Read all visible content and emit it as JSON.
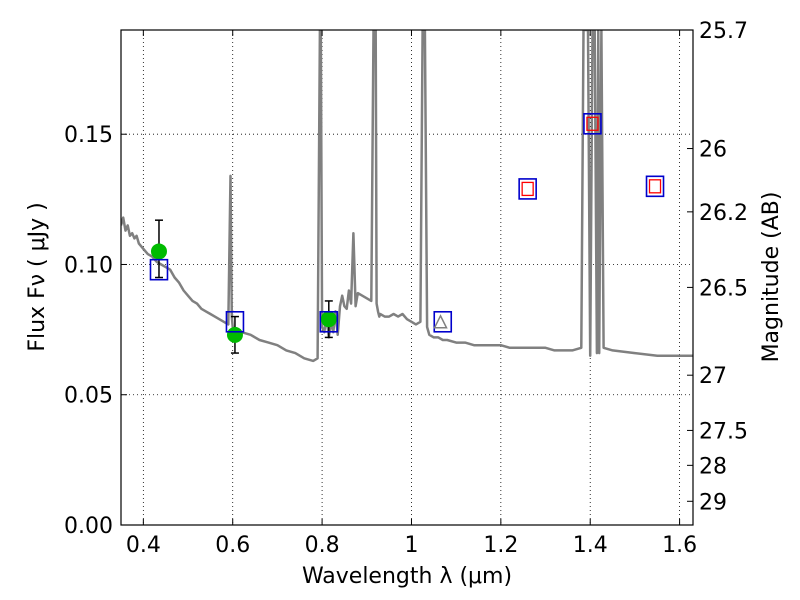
{
  "chart_data": {
    "type": "scatter",
    "xlabel": "Wavelength  λ (μm)",
    "ylabel": "Flux  Fν  ( μJy )",
    "ylabel_right": "Magnitude (AB)",
    "xlim": [
      0.35,
      1.63
    ],
    "ylim": [
      0.0,
      0.19
    ],
    "grid": true,
    "x_ticks": [
      0.4,
      0.6,
      0.8,
      1.0,
      1.2,
      1.4,
      1.6
    ],
    "x_tick_labels": [
      "0.4",
      "0.6",
      "0.8",
      "1",
      "1.2",
      "1.4",
      "1.6"
    ],
    "y_ticks": [
      0.0,
      0.05,
      0.1,
      0.15
    ],
    "y_tick_labels": [
      "0.00",
      "0.05",
      "0.10",
      "0.15"
    ],
    "right_ticks": [
      {
        "label": "25.7",
        "flux": 0.19
      },
      {
        "label": "26",
        "flux": 0.1445
      },
      {
        "label": "26.2",
        "flux": 0.1202
      },
      {
        "label": "26.5",
        "flux": 0.0912
      },
      {
        "label": "27",
        "flux": 0.0575
      },
      {
        "label": "27.5",
        "flux": 0.0363
      },
      {
        "label": "28",
        "flux": 0.0229
      },
      {
        "label": "29",
        "flux": 0.0091
      }
    ],
    "series": [
      {
        "kind": "line",
        "color": "#808080",
        "x": [
          0.35,
          0.355,
          0.36,
          0.365,
          0.37,
          0.375,
          0.38,
          0.385,
          0.39,
          0.4,
          0.41,
          0.42,
          0.43,
          0.44,
          0.45,
          0.46,
          0.47,
          0.48,
          0.49,
          0.5,
          0.51,
          0.52,
          0.53,
          0.54,
          0.55,
          0.56,
          0.57,
          0.58,
          0.59,
          0.595,
          0.598,
          0.6,
          0.61,
          0.62,
          0.64,
          0.66,
          0.68,
          0.7,
          0.72,
          0.74,
          0.76,
          0.78,
          0.79,
          0.795,
          0.797,
          0.8,
          0.805,
          0.81,
          0.815,
          0.82,
          0.825,
          0.83,
          0.835,
          0.84,
          0.845,
          0.85,
          0.855,
          0.86,
          0.865,
          0.87,
          0.875,
          0.88,
          0.89,
          0.9,
          0.91,
          0.915,
          0.92,
          0.922,
          0.925,
          0.928,
          0.93,
          0.94,
          0.95,
          0.96,
          0.97,
          0.98,
          0.99,
          1.0,
          1.01,
          1.02,
          1.025,
          1.03,
          1.035,
          1.04,
          1.05,
          1.06,
          1.07,
          1.08,
          1.1,
          1.12,
          1.14,
          1.16,
          1.18,
          1.2,
          1.22,
          1.24,
          1.26,
          1.28,
          1.3,
          1.32,
          1.34,
          1.36,
          1.38,
          1.385,
          1.39,
          1.395,
          1.4,
          1.405,
          1.41,
          1.415,
          1.418,
          1.42,
          1.425,
          1.43,
          1.45,
          1.5,
          1.55,
          1.6,
          1.63
        ],
        "y": [
          0.115,
          0.118,
          0.113,
          0.115,
          0.111,
          0.112,
          0.11,
          0.111,
          0.108,
          0.106,
          0.104,
          0.103,
          0.101,
          0.1,
          0.099,
          0.098,
          0.095,
          0.093,
          0.09,
          0.088,
          0.086,
          0.085,
          0.083,
          0.082,
          0.081,
          0.08,
          0.079,
          0.078,
          0.077,
          0.134,
          0.08,
          0.076,
          0.075,
          0.074,
          0.073,
          0.071,
          0.07,
          0.069,
          0.067,
          0.066,
          0.064,
          0.063,
          0.064,
          0.19,
          0.19,
          0.076,
          0.074,
          0.08,
          0.072,
          0.078,
          0.074,
          0.082,
          0.073,
          0.084,
          0.088,
          0.084,
          0.083,
          0.09,
          0.085,
          0.112,
          0.084,
          0.089,
          0.088,
          0.087,
          0.086,
          0.19,
          0.19,
          0.085,
          0.082,
          0.08,
          0.081,
          0.08,
          0.08,
          0.081,
          0.08,
          0.081,
          0.079,
          0.078,
          0.077,
          0.078,
          0.19,
          0.19,
          0.076,
          0.073,
          0.072,
          0.072,
          0.071,
          0.071,
          0.07,
          0.07,
          0.069,
          0.069,
          0.069,
          0.069,
          0.068,
          0.068,
          0.068,
          0.068,
          0.068,
          0.067,
          0.067,
          0.067,
          0.068,
          0.19,
          0.19,
          0.19,
          0.065,
          0.19,
          0.19,
          0.066,
          0.19,
          0.066,
          0.19,
          0.068,
          0.067,
          0.066,
          0.065,
          0.065,
          0.065
        ]
      },
      {
        "kind": "scatter",
        "marker": "circle",
        "color": "#00bb00",
        "x": [
          0.435,
          0.605,
          0.815
        ],
        "y": [
          0.105,
          0.073,
          0.079
        ],
        "yerr_low": [
          0.01,
          0.007,
          0.007
        ],
        "yerr_high": [
          0.012,
          0.007,
          0.007
        ]
      },
      {
        "kind": "scatter",
        "marker": "square-open",
        "color": "#0000cc",
        "x": [
          0.435,
          0.605,
          0.815,
          1.07,
          1.26,
          1.405,
          1.545
        ],
        "y": [
          0.098,
          0.078,
          0.078,
          0.078,
          0.129,
          0.154,
          0.13
        ]
      },
      {
        "kind": "scatter",
        "marker": "square-open-small",
        "color": "#ff0000",
        "x": [
          1.26,
          1.405,
          1.545
        ],
        "y": [
          0.129,
          0.154,
          0.13
        ]
      },
      {
        "kind": "scatter",
        "marker": "triangle-open",
        "color": "#808080",
        "x": [
          1.065
        ],
        "y": [
          0.078
        ]
      }
    ]
  }
}
